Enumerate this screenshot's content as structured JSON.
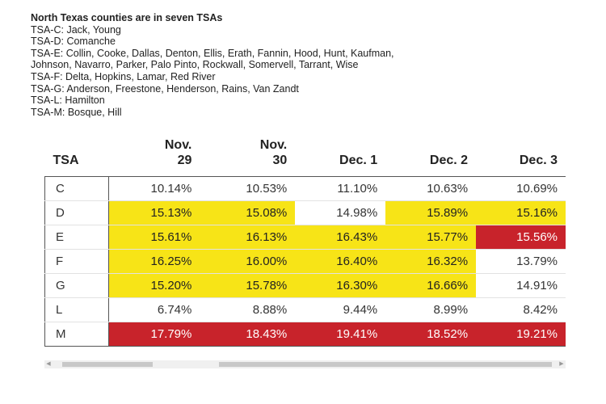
{
  "notes": {
    "heading": "North Texas counties are in seven TSAs",
    "lines": [
      "TSA-C: Jack, Young",
      "TSA-D: Comanche",
      "TSA-E: Collin, Cooke, Dallas, Denton, Ellis, Erath, Fannin, Hood, Hunt, Kaufman,",
      "Johnson, Navarro, Parker, Palo Pinto, Rockwall, Somervell, Tarrant, Wise",
      "TSA-F: Delta, Hopkins, Lamar, Red River",
      "TSA-G: Anderson, Freestone, Henderson, Rains, Van Zandt",
      "TSA-L: Hamilton",
      "TSA-M: Bosque, Hill"
    ]
  },
  "table": {
    "headers": [
      {
        "line1": "",
        "line2": "TSA"
      },
      {
        "line1": "Nov.",
        "line2": "29"
      },
      {
        "line1": "Nov.",
        "line2": "30"
      },
      {
        "line1": "",
        "line2": "Dec. 1"
      },
      {
        "line1": "",
        "line2": "Dec. 2"
      },
      {
        "line1": "",
        "line2": "Dec. 3"
      }
    ],
    "rows": [
      {
        "tsa": "C",
        "values": [
          "10.14%",
          "10.53%",
          "11.10%",
          "10.63%",
          "10.69%"
        ],
        "highlight": [
          "none",
          "none",
          "none",
          "none",
          "none"
        ]
      },
      {
        "tsa": "D",
        "values": [
          "15.13%",
          "15.08%",
          "14.98%",
          "15.89%",
          "15.16%"
        ],
        "highlight": [
          "yellow",
          "yellow",
          "none",
          "yellow",
          "yellow"
        ]
      },
      {
        "tsa": "E",
        "values": [
          "15.61%",
          "16.13%",
          "16.43%",
          "15.77%",
          "15.56%"
        ],
        "highlight": [
          "yellow",
          "yellow",
          "yellow",
          "yellow",
          "red"
        ]
      },
      {
        "tsa": "F",
        "values": [
          "16.25%",
          "16.00%",
          "16.40%",
          "16.32%",
          "13.79%"
        ],
        "highlight": [
          "yellow",
          "yellow",
          "yellow",
          "yellow",
          "none"
        ]
      },
      {
        "tsa": "G",
        "values": [
          "15.20%",
          "15.78%",
          "16.30%",
          "16.66%",
          "14.91%"
        ],
        "highlight": [
          "yellow",
          "yellow",
          "yellow",
          "yellow",
          "none"
        ]
      },
      {
        "tsa": "L",
        "values": [
          "6.74%",
          "8.88%",
          "9.44%",
          "8.99%",
          "8.42%"
        ],
        "highlight": [
          "none",
          "none",
          "none",
          "none",
          "none"
        ]
      },
      {
        "tsa": "M",
        "values": [
          "17.79%",
          "18.43%",
          "19.41%",
          "18.52%",
          "19.21%"
        ],
        "highlight": [
          "red",
          "red",
          "red",
          "red",
          "red"
        ]
      }
    ]
  },
  "scrollbar": {
    "left_arrow_icon": "arrow-left-icon",
    "right_arrow_icon": "arrow-right-icon"
  },
  "colors": {
    "yellow": "#f7e417",
    "red": "#c8232b"
  }
}
